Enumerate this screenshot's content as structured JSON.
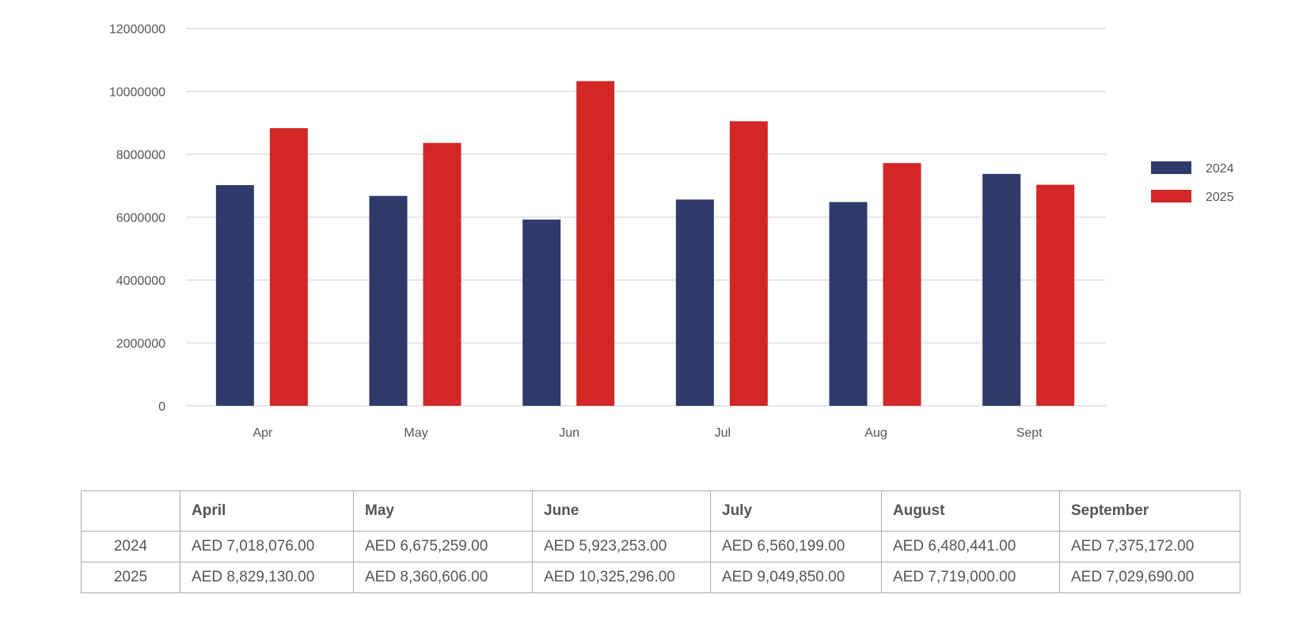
{
  "chart_data": {
    "type": "bar",
    "title": "",
    "xlabel": "",
    "ylabel": "",
    "categories": [
      "Apr",
      "May",
      "Jun",
      "Jul",
      "Aug",
      "Sept"
    ],
    "series": [
      {
        "name": "2024",
        "color": "#2f3a6b",
        "values": [
          7018076,
          6675259,
          5923253,
          6560199,
          6480441,
          7375172
        ]
      },
      {
        "name": "2025",
        "color": "#d32626",
        "values": [
          8829130,
          8360606,
          10325296,
          9049850,
          7719000,
          7029690
        ]
      }
    ],
    "ylim": [
      0,
      12000000
    ],
    "yticks": [
      "0",
      "2000000",
      "4000000",
      "6000000",
      "8000000",
      "10000000",
      "12000000"
    ],
    "grid": true,
    "legend": "right"
  },
  "table": {
    "headers": [
      "",
      "April",
      "May",
      "June",
      "July",
      "August",
      "September"
    ],
    "rows": [
      {
        "year": "2024",
        "cells": [
          "AED 7,018,076.00",
          "AED 6,675,259.00",
          "AED 5,923,253.00",
          "AED 6,560,199.00",
          "AED 6,480,441.00",
          "AED 7,375,172.00"
        ]
      },
      {
        "year": "2025",
        "cells": [
          "AED 8,829,130.00",
          "AED 8,360,606.00",
          "AED 10,325,296.00",
          "AED 9,049,850.00",
          "AED 7,719,000.00",
          "AED 7,029,690.00"
        ]
      }
    ]
  }
}
